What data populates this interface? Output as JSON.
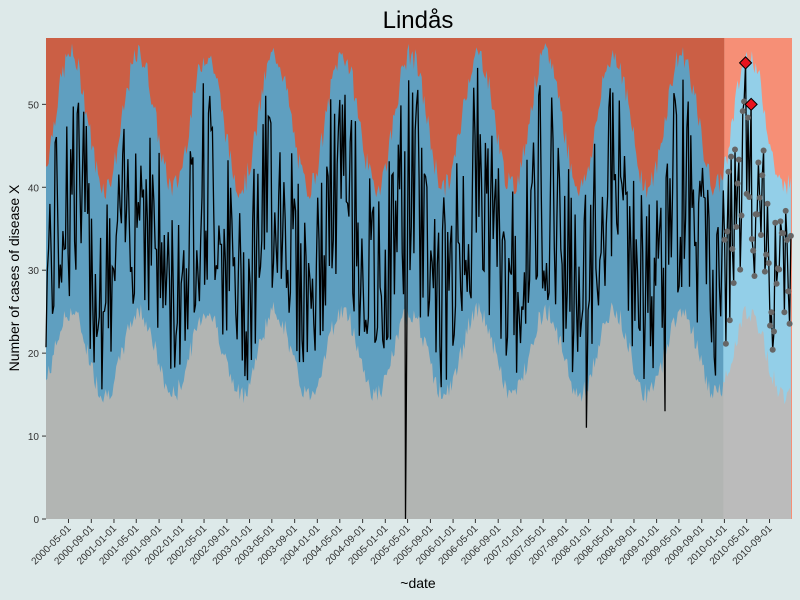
{
  "chart_data": {
    "type": "area",
    "title": "Lindås",
    "xlabel": "~date",
    "ylabel": "Number of cases of disease X",
    "ylim": [
      0,
      58
    ],
    "yticks": [
      0,
      10,
      20,
      30,
      40,
      50
    ],
    "xlim": [
      "2000-01-01",
      "2010-12-31"
    ],
    "xticks": [
      "2000-05-01",
      "2000-09-01",
      "2001-01-01",
      "2001-05-01",
      "2001-09-01",
      "2002-01-01",
      "2002-05-01",
      "2002-09-01",
      "2003-01-01",
      "2003-05-01",
      "2003-09-01",
      "2004-01-01",
      "2004-05-01",
      "2004-09-01",
      "2005-01-01",
      "2005-05-01",
      "2005-09-01",
      "2006-01-01",
      "2006-05-01",
      "2006-09-01",
      "2007-01-01",
      "2007-05-01",
      "2007-09-01",
      "2008-01-01",
      "2008-05-01",
      "2008-09-01",
      "2009-01-01",
      "2009-05-01",
      "2009-09-01",
      "2010-01-01",
      "2010-05-01",
      "2010-09-01"
    ],
    "baseline_end": "2010-01-01",
    "bands": {
      "lower_baseline": {
        "min": 15,
        "max": 25
      },
      "upper_baseline": {
        "min": 40,
        "max": 56
      },
      "seasonal_peak_day_of_year": 135
    },
    "colors": {
      "background": "#dde9e9",
      "normal": "#b2b5b3",
      "expected": "#5f9fc0",
      "alert": "#cb5f45",
      "normal_current": "#bbbbbb",
      "expected_current": "#93cfe8",
      "alert_current": "#f68f76",
      "line": "#000000",
      "points": "#666666",
      "outbreak_marker": "#e8131d"
    },
    "notable_points": [
      {
        "date": "2005-04-20",
        "value": 0
      },
      {
        "date": "2007-12-20",
        "value": 11
      },
      {
        "date": "2009-02-15",
        "value": 13
      },
      {
        "date": "2010-04-25",
        "value": 55,
        "outbreak": true
      },
      {
        "date": "2010-05-25",
        "value": 50,
        "outbreak": true
      }
    ]
  }
}
